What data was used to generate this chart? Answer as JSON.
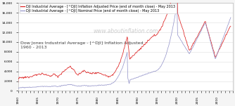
{
  "legend1": "DJI Industrial Average - [^DJI] Inflation Adjusted Price (end of month close) - May 2013",
  "legend2": "DJI Industrial Average - [^DJI] Nominal Price (end of month close) - May 2013",
  "title_line1": "Dow Jones Industrial Average - [^DJI] Inflation Adjusted",
  "title_line2": "1960 - 2013",
  "watermark": "www.aboutinflation.com",
  "color_inflation": "#dd2222",
  "color_nominal": "#9999cc",
  "bg_color": "#f5f5f5",
  "plot_bg": "#ffffff",
  "ylim": [
    0,
    18000
  ],
  "yticks": [
    0,
    2000,
    4000,
    6000,
    8000,
    10000,
    12000,
    14000,
    16000,
    18000
  ],
  "xlim_start": 1960,
  "xlim_end": 2014,
  "grid_color": "#dddddd",
  "title_fontsize": 4.5,
  "watermark_fontsize": 5.5,
  "legend_fontsize": 3.5,
  "tick_fontsize": 3.2,
  "line_width": 0.55
}
